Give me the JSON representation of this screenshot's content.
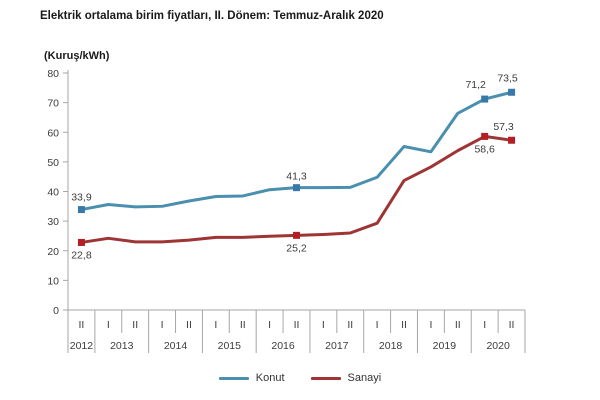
{
  "chart_data": {
    "type": "line",
    "title": "Elektrik ortalama birim fiyatları, II. Dönem: Temmuz-Aralık 2020",
    "y_unit_label": "(Kuruş/kWh)",
    "ylim": [
      0,
      80
    ],
    "y_ticks": [
      0,
      10,
      20,
      30,
      40,
      50,
      60,
      70,
      80
    ],
    "x_periods": [
      "II",
      "I",
      "II",
      "I",
      "II",
      "I",
      "II",
      "I",
      "II",
      "I",
      "II",
      "I",
      "II",
      "I",
      "II",
      "I",
      "II"
    ],
    "x_years": [
      {
        "label": "2012",
        "periods": 1
      },
      {
        "label": "2013",
        "periods": 2
      },
      {
        "label": "2014",
        "periods": 2
      },
      {
        "label": "2015",
        "periods": 2
      },
      {
        "label": "2016",
        "periods": 2
      },
      {
        "label": "2017",
        "periods": 2
      },
      {
        "label": "2018",
        "periods": 2
      },
      {
        "label": "2019",
        "periods": 2
      },
      {
        "label": "2020",
        "periods": 2
      }
    ],
    "grid": "off",
    "legend_position": "bottom",
    "series": [
      {
        "name": "Konut",
        "color": "#4a8fad",
        "marker_color": "#3a78a9",
        "values": [
          33.9,
          35.6,
          34.8,
          35.0,
          36.8,
          38.3,
          38.5,
          40.6,
          41.3,
          41.3,
          41.4,
          44.8,
          55.2,
          53.4,
          66.4,
          71.2,
          73.5
        ],
        "labeled_points": [
          {
            "index": 0,
            "label": "33,9",
            "position": "above",
            "dx": 0,
            "dy": -9
          },
          {
            "index": 8,
            "label": "41,3",
            "position": "above",
            "dx": 0,
            "dy": -8
          },
          {
            "index": 15,
            "label": "71,2",
            "position": "above",
            "dx": -9,
            "dy": -11
          },
          {
            "index": 16,
            "label": "73,5",
            "position": "above",
            "dx": -4,
            "dy": -11
          }
        ]
      },
      {
        "name": "Sanayi",
        "color": "#9e3434",
        "marker_color": "#b31f24",
        "values": [
          22.8,
          24.2,
          23.0,
          23.0,
          23.6,
          24.5,
          24.5,
          24.9,
          25.2,
          25.5,
          26.0,
          29.3,
          43.7,
          48.3,
          53.8,
          58.6,
          57.3
        ],
        "labeled_points": [
          {
            "index": 0,
            "label": "22,8",
            "position": "below",
            "dx": 0,
            "dy": 16
          },
          {
            "index": 8,
            "label": "25,2",
            "position": "below",
            "dx": 0,
            "dy": 16
          },
          {
            "index": 15,
            "label": "58,6",
            "position": "below",
            "dx": 0,
            "dy": 16
          },
          {
            "index": 16,
            "label": "57,3",
            "position": "above",
            "dx": -8,
            "dy": -10
          }
        ]
      }
    ]
  }
}
